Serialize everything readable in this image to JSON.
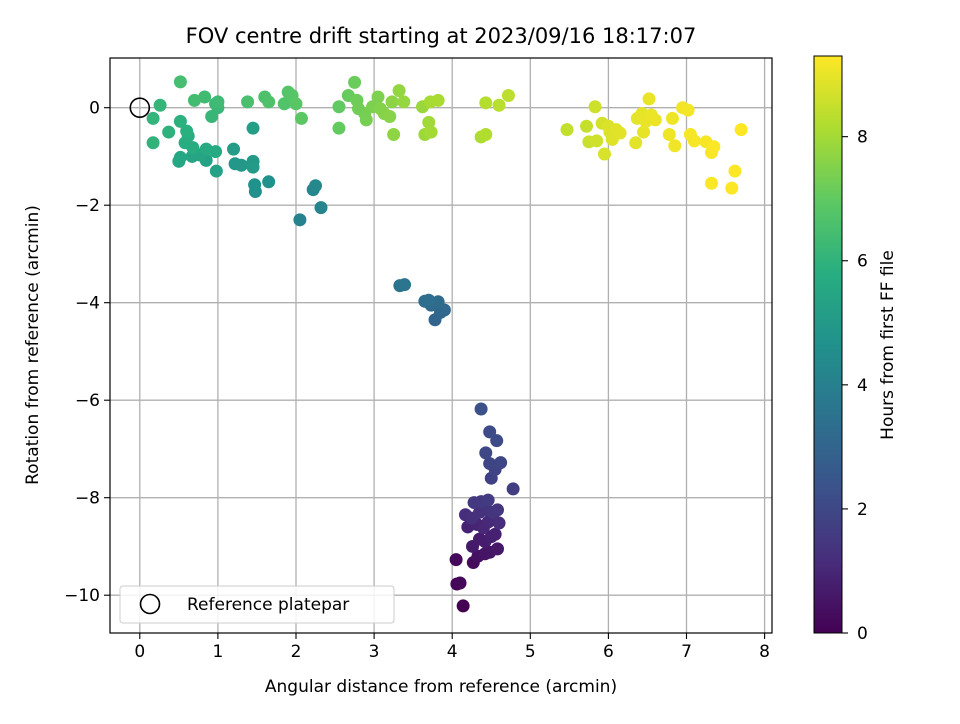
{
  "chart_data": {
    "type": "scatter",
    "title": "FOV centre drift starting at 2023/09/16 18:17:07",
    "xlabel": "Angular distance from reference (arcmin)",
    "ylabel": "Rotation from reference (arcmin)",
    "xlim": [
      -0.4,
      8.1
    ],
    "ylim": [
      -10.75,
      1.05
    ],
    "xticks": [
      0,
      1,
      2,
      3,
      4,
      5,
      6,
      7,
      8
    ],
    "yticks": [
      0,
      -2,
      -4,
      -6,
      -8,
      -10
    ],
    "xtick_labels": [
      "0",
      "1",
      "2",
      "3",
      "4",
      "5",
      "6",
      "7",
      "8"
    ],
    "ytick_labels": [
      "0",
      "−2",
      "−4",
      "−6",
      "−8",
      "−10"
    ],
    "grid": true,
    "legend": {
      "placement": "lower-left",
      "entries": [
        "Reference platepar"
      ]
    },
    "reference_point": {
      "x": 0,
      "y": 0
    },
    "colorbar": {
      "label": "Hours from first FF file",
      "colormap": "viridis",
      "range": [
        0,
        9.3
      ],
      "ticks": [
        0,
        2,
        4,
        6,
        8
      ],
      "tick_labels": [
        "0",
        "2",
        "4",
        "6",
        "8"
      ]
    },
    "points": [
      {
        "x": 4.14,
        "y": -10.22,
        "h": 0.0
      },
      {
        "x": 4.06,
        "y": -9.77,
        "h": 0.1
      },
      {
        "x": 4.1,
        "y": -9.75,
        "h": 0.15
      },
      {
        "x": 4.05,
        "y": -9.27,
        "h": 0.2
      },
      {
        "x": 4.27,
        "y": -9.33,
        "h": 0.3
      },
      {
        "x": 4.33,
        "y": -9.2,
        "h": 0.4
      },
      {
        "x": 4.42,
        "y": -9.15,
        "h": 0.5
      },
      {
        "x": 4.48,
        "y": -9.12,
        "h": 0.55
      },
      {
        "x": 4.58,
        "y": -9.05,
        "h": 0.6
      },
      {
        "x": 4.26,
        "y": -9.0,
        "h": 0.65
      },
      {
        "x": 4.35,
        "y": -8.85,
        "h": 0.7
      },
      {
        "x": 4.42,
        "y": -8.9,
        "h": 0.75
      },
      {
        "x": 4.5,
        "y": -8.8,
        "h": 0.8
      },
      {
        "x": 4.55,
        "y": -8.75,
        "h": 0.85
      },
      {
        "x": 4.2,
        "y": -8.6,
        "h": 0.9
      },
      {
        "x": 4.32,
        "y": -8.55,
        "h": 0.95
      },
      {
        "x": 4.4,
        "y": -8.62,
        "h": 1.0
      },
      {
        "x": 4.46,
        "y": -8.5,
        "h": 1.05
      },
      {
        "x": 4.53,
        "y": -8.45,
        "h": 1.1
      },
      {
        "x": 4.6,
        "y": -8.52,
        "h": 1.15
      },
      {
        "x": 4.17,
        "y": -8.35,
        "h": 1.2
      },
      {
        "x": 4.25,
        "y": -8.42,
        "h": 1.25
      },
      {
        "x": 4.35,
        "y": -8.3,
        "h": 1.3
      },
      {
        "x": 4.44,
        "y": -8.25,
        "h": 1.35
      },
      {
        "x": 4.52,
        "y": -8.3,
        "h": 1.4
      },
      {
        "x": 4.58,
        "y": -8.25,
        "h": 1.45
      },
      {
        "x": 4.28,
        "y": -8.1,
        "h": 1.5
      },
      {
        "x": 4.37,
        "y": -8.08,
        "h": 1.55
      },
      {
        "x": 4.46,
        "y": -8.05,
        "h": 1.6
      },
      {
        "x": 4.78,
        "y": -7.82,
        "h": 1.7
      },
      {
        "x": 4.5,
        "y": -7.6,
        "h": 1.8
      },
      {
        "x": 4.55,
        "y": -7.42,
        "h": 1.85
      },
      {
        "x": 4.48,
        "y": -7.3,
        "h": 1.9
      },
      {
        "x": 4.62,
        "y": -7.28,
        "h": 1.95
      },
      {
        "x": 4.43,
        "y": -7.08,
        "h": 2.0
      },
      {
        "x": 4.57,
        "y": -6.83,
        "h": 2.1
      },
      {
        "x": 4.48,
        "y": -6.65,
        "h": 2.15
      },
      {
        "x": 4.37,
        "y": -6.18,
        "h": 2.25
      },
      {
        "x": 3.78,
        "y": -4.35,
        "h": 3.0
      },
      {
        "x": 3.85,
        "y": -4.2,
        "h": 3.1
      },
      {
        "x": 3.9,
        "y": -4.15,
        "h": 3.15
      },
      {
        "x": 3.73,
        "y": -4.05,
        "h": 3.2
      },
      {
        "x": 3.82,
        "y": -3.98,
        "h": 3.25
      },
      {
        "x": 3.65,
        "y": -3.97,
        "h": 3.3
      },
      {
        "x": 3.7,
        "y": -3.95,
        "h": 3.35
      },
      {
        "x": 3.33,
        "y": -3.65,
        "h": 3.55
      },
      {
        "x": 3.39,
        "y": -3.63,
        "h": 3.6
      },
      {
        "x": 2.05,
        "y": -2.3,
        "h": 4.1
      },
      {
        "x": 2.32,
        "y": -2.05,
        "h": 4.15
      },
      {
        "x": 2.22,
        "y": -1.68,
        "h": 4.25
      },
      {
        "x": 2.25,
        "y": -1.6,
        "h": 4.3
      },
      {
        "x": 1.48,
        "y": -1.72,
        "h": 4.6
      },
      {
        "x": 1.47,
        "y": -1.58,
        "h": 4.65
      },
      {
        "x": 1.65,
        "y": -1.52,
        "h": 4.7
      },
      {
        "x": 1.22,
        "y": -1.15,
        "h": 4.9
      },
      {
        "x": 1.3,
        "y": -1.18,
        "h": 4.95
      },
      {
        "x": 1.45,
        "y": -1.1,
        "h": 5.0
      },
      {
        "x": 1.45,
        "y": -1.22,
        "h": 5.05
      },
      {
        "x": 1.2,
        "y": -0.85,
        "h": 5.1
      },
      {
        "x": 1.45,
        "y": -0.42,
        "h": 5.2
      },
      {
        "x": 0.98,
        "y": -1.3,
        "h": 5.3
      },
      {
        "x": 0.85,
        "y": -1.08,
        "h": 5.35
      },
      {
        "x": 0.77,
        "y": -0.97,
        "h": 5.4
      },
      {
        "x": 0.67,
        "y": -1.0,
        "h": 5.45
      },
      {
        "x": 0.5,
        "y": -1.1,
        "h": 5.5
      },
      {
        "x": 0.52,
        "y": -1.02,
        "h": 5.55
      },
      {
        "x": 0.97,
        "y": -0.9,
        "h": 5.6
      },
      {
        "x": 0.85,
        "y": -0.85,
        "h": 5.65
      },
      {
        "x": 0.68,
        "y": -0.82,
        "h": 5.7
      },
      {
        "x": 0.58,
        "y": -0.72,
        "h": 5.75
      },
      {
        "x": 0.62,
        "y": -0.58,
        "h": 5.8
      },
      {
        "x": 0.6,
        "y": -0.48,
        "h": 5.85
      },
      {
        "x": 0.52,
        "y": -0.28,
        "h": 5.9
      },
      {
        "x": 0.37,
        "y": -0.5,
        "h": 5.95
      },
      {
        "x": 0.17,
        "y": -0.72,
        "h": 6.0
      },
      {
        "x": 0.17,
        "y": -0.22,
        "h": 6.05
      },
      {
        "x": 0.26,
        "y": 0.05,
        "h": 6.1
      },
      {
        "x": 0.92,
        "y": -0.18,
        "h": 6.15
      },
      {
        "x": 1.0,
        "y": 0.0,
        "h": 6.2
      },
      {
        "x": 0.97,
        "y": 0.08,
        "h": 6.25
      },
      {
        "x": 1.0,
        "y": 0.12,
        "h": 6.3
      },
      {
        "x": 0.83,
        "y": 0.22,
        "h": 6.35
      },
      {
        "x": 0.7,
        "y": 0.15,
        "h": 6.4
      },
      {
        "x": 0.52,
        "y": 0.53,
        "h": 6.45
      },
      {
        "x": 1.38,
        "y": 0.12,
        "h": 6.55
      },
      {
        "x": 1.6,
        "y": 0.22,
        "h": 6.6
      },
      {
        "x": 1.65,
        "y": 0.12,
        "h": 6.65
      },
      {
        "x": 1.85,
        "y": 0.08,
        "h": 6.7
      },
      {
        "x": 1.9,
        "y": 0.32,
        "h": 6.75
      },
      {
        "x": 1.95,
        "y": 0.25,
        "h": 6.8
      },
      {
        "x": 2.0,
        "y": 0.08,
        "h": 6.85
      },
      {
        "x": 2.07,
        "y": -0.22,
        "h": 6.9
      },
      {
        "x": 2.55,
        "y": 0.02,
        "h": 7.0
      },
      {
        "x": 2.55,
        "y": -0.42,
        "h": 7.05
      },
      {
        "x": 2.67,
        "y": 0.25,
        "h": 7.1
      },
      {
        "x": 2.75,
        "y": 0.52,
        "h": 7.15
      },
      {
        "x": 2.78,
        "y": 0.15,
        "h": 7.2
      },
      {
        "x": 2.8,
        "y": -0.02,
        "h": 7.25
      },
      {
        "x": 2.88,
        "y": -0.12,
        "h": 7.3
      },
      {
        "x": 2.9,
        "y": -0.25,
        "h": 7.35
      },
      {
        "x": 2.98,
        "y": 0.02,
        "h": 7.4
      },
      {
        "x": 3.05,
        "y": 0.22,
        "h": 7.45
      },
      {
        "x": 3.08,
        "y": -0.02,
        "h": 7.5
      },
      {
        "x": 3.13,
        "y": -0.12,
        "h": 7.55
      },
      {
        "x": 3.2,
        "y": -0.18,
        "h": 7.6
      },
      {
        "x": 3.23,
        "y": 0.12,
        "h": 7.65
      },
      {
        "x": 3.25,
        "y": -0.55,
        "h": 7.7
      },
      {
        "x": 3.32,
        "y": 0.35,
        "h": 7.75
      },
      {
        "x": 3.38,
        "y": 0.12,
        "h": 7.8
      },
      {
        "x": 3.62,
        "y": 0.02,
        "h": 7.85
      },
      {
        "x": 3.65,
        "y": -0.55,
        "h": 7.9
      },
      {
        "x": 3.7,
        "y": -0.3,
        "h": 7.95
      },
      {
        "x": 3.73,
        "y": -0.5,
        "h": 8.0
      },
      {
        "x": 3.72,
        "y": 0.12,
        "h": 8.05
      },
      {
        "x": 3.82,
        "y": 0.15,
        "h": 8.1
      },
      {
        "x": 4.37,
        "y": -0.6,
        "h": 8.15
      },
      {
        "x": 4.43,
        "y": -0.55,
        "h": 8.2
      },
      {
        "x": 4.43,
        "y": 0.1,
        "h": 8.25
      },
      {
        "x": 4.6,
        "y": 0.05,
        "h": 8.3
      },
      {
        "x": 4.72,
        "y": 0.25,
        "h": 8.35
      },
      {
        "x": 5.47,
        "y": -0.45,
        "h": 8.45
      },
      {
        "x": 5.72,
        "y": -0.38,
        "h": 8.5
      },
      {
        "x": 5.75,
        "y": -0.7,
        "h": 8.55
      },
      {
        "x": 5.83,
        "y": 0.02,
        "h": 8.6
      },
      {
        "x": 5.85,
        "y": -0.68,
        "h": 8.65
      },
      {
        "x": 5.92,
        "y": -0.32,
        "h": 8.7
      },
      {
        "x": 5.95,
        "y": -0.95,
        "h": 8.75
      },
      {
        "x": 6.0,
        "y": -0.38,
        "h": 8.8
      },
      {
        "x": 6.02,
        "y": -0.5,
        "h": 8.82
      },
      {
        "x": 6.05,
        "y": -0.65,
        "h": 8.85
      },
      {
        "x": 6.1,
        "y": -0.45,
        "h": 8.88
      },
      {
        "x": 6.15,
        "y": -0.52,
        "h": 8.9
      },
      {
        "x": 6.35,
        "y": -0.72,
        "h": 8.92
      },
      {
        "x": 6.37,
        "y": -0.22,
        "h": 8.94
      },
      {
        "x": 6.43,
        "y": -0.12,
        "h": 8.96
      },
      {
        "x": 6.45,
        "y": -0.5,
        "h": 8.98
      },
      {
        "x": 6.48,
        "y": -0.28,
        "h": 9.0
      },
      {
        "x": 6.52,
        "y": 0.18,
        "h": 9.02
      },
      {
        "x": 6.55,
        "y": -0.15,
        "h": 9.04
      },
      {
        "x": 6.6,
        "y": -0.25,
        "h": 9.06
      },
      {
        "x": 6.78,
        "y": -0.55,
        "h": 9.08
      },
      {
        "x": 6.82,
        "y": -0.22,
        "h": 9.1
      },
      {
        "x": 6.85,
        "y": -0.78,
        "h": 9.12
      },
      {
        "x": 6.95,
        "y": 0.0,
        "h": 9.14
      },
      {
        "x": 7.02,
        "y": -0.05,
        "h": 9.16
      },
      {
        "x": 7.05,
        "y": -0.55,
        "h": 9.18
      },
      {
        "x": 7.1,
        "y": -0.68,
        "h": 9.2
      },
      {
        "x": 7.25,
        "y": -0.7,
        "h": 9.22
      },
      {
        "x": 7.32,
        "y": -0.92,
        "h": 9.24
      },
      {
        "x": 7.35,
        "y": -0.8,
        "h": 9.25
      },
      {
        "x": 7.32,
        "y": -1.55,
        "h": 9.26
      },
      {
        "x": 7.58,
        "y": -1.65,
        "h": 9.27
      },
      {
        "x": 7.62,
        "y": -1.3,
        "h": 9.28
      },
      {
        "x": 7.7,
        "y": -0.45,
        "h": 9.3
      }
    ]
  }
}
